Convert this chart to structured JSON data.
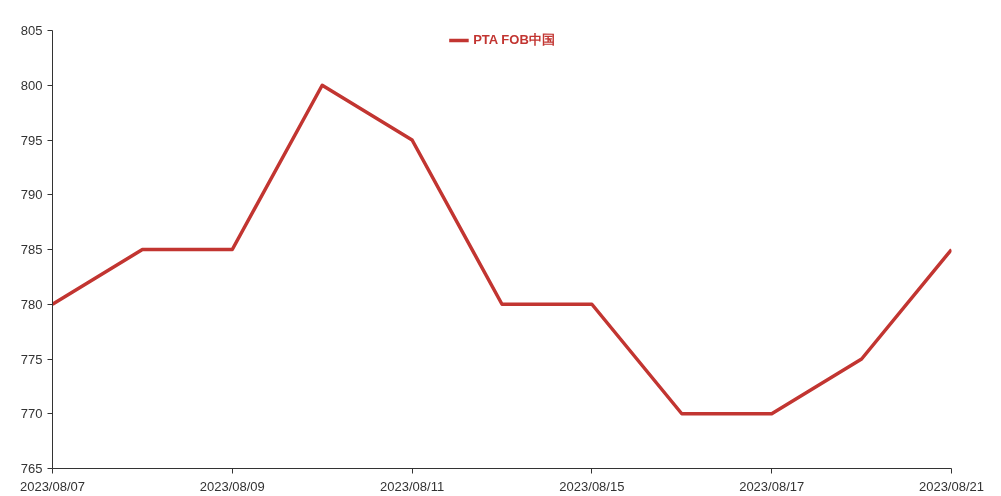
{
  "chart_data": {
    "type": "line",
    "categories": [
      "2023/08/07",
      null,
      "2023/08/09",
      null,
      "2023/08/11",
      null,
      "2023/08/15",
      null,
      "2023/08/17",
      null,
      "2023/08/21"
    ],
    "series": [
      {
        "name": "PTA FOB中国",
        "color": "#c23531",
        "values": [
          780,
          785,
          785,
          800,
          795,
          780,
          780,
          770,
          770,
          775,
          785
        ]
      }
    ],
    "ylim": [
      765,
      805
    ],
    "yticks": [
      765,
      770,
      775,
      780,
      785,
      790,
      795,
      800,
      805
    ],
    "grid": false,
    "legend": "top"
  }
}
